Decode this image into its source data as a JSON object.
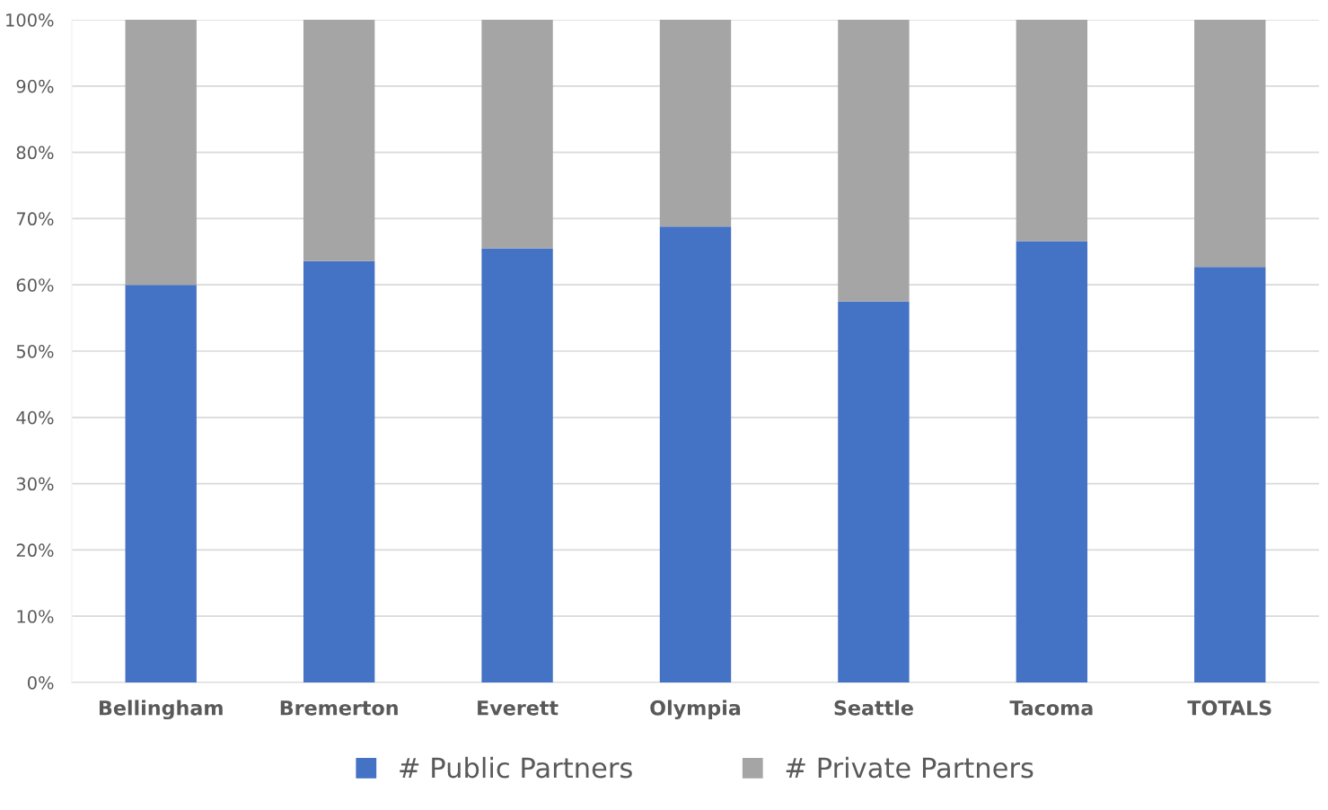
{
  "chart_data": {
    "type": "bar",
    "stacked": true,
    "categories": [
      "Bellingham",
      "Bremerton",
      "Everett",
      "Olympia",
      "Seattle",
      "Tacoma",
      "TOTALS"
    ],
    "series": [
      {
        "name": "# Public Partners",
        "color": "#4472c4",
        "values": [
          60.0,
          63.6,
          65.5,
          68.8,
          57.5,
          66.6,
          62.7
        ]
      },
      {
        "name": "# Private Partners",
        "color": "#a5a5a5",
        "values": [
          40.0,
          36.4,
          34.5,
          31.2,
          42.5,
          33.4,
          37.3
        ]
      }
    ],
    "ylim": [
      0,
      100
    ],
    "yticks": [
      {
        "value": 0,
        "label": "0%"
      },
      {
        "value": 10,
        "label": "10%"
      },
      {
        "value": 20,
        "label": "20%"
      },
      {
        "value": 30,
        "label": "30%"
      },
      {
        "value": 40,
        "label": "40%"
      },
      {
        "value": 50,
        "label": "50%"
      },
      {
        "value": 60,
        "label": "60%"
      },
      {
        "value": 70,
        "label": "70%"
      },
      {
        "value": 80,
        "label": "80%"
      },
      {
        "value": 90,
        "label": "90%"
      },
      {
        "value": 100,
        "label": "100%"
      }
    ],
    "grid": "y",
    "legend": "bottom"
  }
}
